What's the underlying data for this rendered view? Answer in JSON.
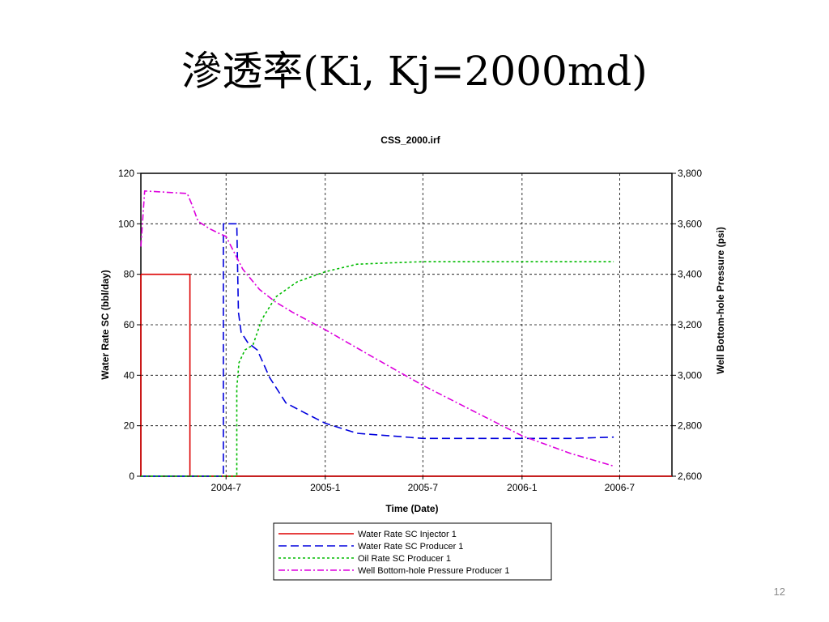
{
  "slide": {
    "title": "滲透率(Ki, Kj=2000md)",
    "page_number": "12"
  },
  "chart_data": {
    "type": "line",
    "title": "CSS_2000.irf",
    "xlabel": "Time (Date)",
    "ylabel": "Water Rate SC (bbl/day)",
    "y2label": "Well Bottom-hole Pressure (psi)",
    "xlim": [
      "2004-01-25",
      "2006-10-06"
    ],
    "ylim": [
      0,
      120
    ],
    "y2lim": [
      2600,
      3800
    ],
    "x_ticks": [
      {
        "date": "2004-07-01",
        "label": "2004-7"
      },
      {
        "date": "2005-01-01",
        "label": "2005-1"
      },
      {
        "date": "2005-07-01",
        "label": "2005-7"
      },
      {
        "date": "2006-01-01",
        "label": "2006-1"
      },
      {
        "date": "2006-07-01",
        "label": "2006-7"
      }
    ],
    "y_ticks": [
      0,
      20,
      40,
      60,
      80,
      100,
      120
    ],
    "y2_ticks": [
      {
        "value": 2600,
        "label": "2,600"
      },
      {
        "value": 2800,
        "label": "2,800"
      },
      {
        "value": 3000,
        "label": "3,000"
      },
      {
        "value": 3200,
        "label": "3,200"
      },
      {
        "value": 3400,
        "label": "3,400"
      },
      {
        "value": 3600,
        "label": "3,600"
      },
      {
        "value": 3800,
        "label": "3,800"
      }
    ],
    "grid": true,
    "legend_position": "bottom",
    "series": [
      {
        "name": "Water Rate SC Injector 1",
        "axis": "left",
        "color": "#dd0000",
        "dash": "solid",
        "x": [
          "2004-01-25",
          "2004-01-25",
          "2004-04-25",
          "2004-04-25",
          "2006-10-06"
        ],
        "y": [
          0,
          80,
          80,
          0,
          0
        ]
      },
      {
        "name": "Water Rate SC Producer 1",
        "axis": "left",
        "color": "#0000dd",
        "dash": "dash",
        "x": [
          "2004-01-25",
          "2004-06-26",
          "2004-06-26",
          "2004-07-21",
          "2004-07-24",
          "2004-07-29",
          "2004-08-10",
          "2004-08-28",
          "2004-09-20",
          "2004-10-20",
          "2004-11-25",
          "2005-01-01",
          "2005-03-01",
          "2005-05-01",
          "2005-07-01",
          "2005-10-01",
          "2006-01-01",
          "2006-04-01",
          "2006-06-20"
        ],
        "y": [
          0,
          0,
          100,
          100,
          65,
          57,
          53,
          50,
          39,
          29,
          25,
          21,
          17,
          16,
          15,
          15,
          15,
          15,
          15.5
        ]
      },
      {
        "name": "Oil Rate SC Producer 1",
        "axis": "left",
        "color": "#00bb00",
        "dash": "dot",
        "x": [
          "2004-01-25",
          "2004-07-21",
          "2004-07-21",
          "2004-07-25",
          "2004-08-05",
          "2004-08-20",
          "2004-09-05",
          "2004-10-01",
          "2004-11-10",
          "2005-01-01",
          "2005-03-01",
          "2005-05-01",
          "2005-07-01",
          "2005-10-01",
          "2006-01-01",
          "2006-04-01",
          "2006-06-20"
        ],
        "y": [
          0,
          0,
          35,
          45,
          50,
          52,
          62,
          71,
          77,
          81,
          84,
          84.5,
          85,
          85,
          85,
          85,
          85
        ]
      },
      {
        "name": "Well Bottom-hole Pressure Producer 1",
        "axis": "right",
        "color": "#dd00dd",
        "dash": "dashdot",
        "x": [
          "2004-01-25",
          "2004-02-01",
          "2004-04-20",
          "2004-04-28",
          "2004-05-10",
          "2004-06-01",
          "2004-06-20",
          "2004-07-01",
          "2004-08-01",
          "2004-09-01",
          "2004-10-01",
          "2004-11-01",
          "2005-01-01",
          "2005-04-01",
          "2005-07-01",
          "2005-10-01",
          "2006-01-01",
          "2006-04-01",
          "2006-06-20"
        ],
        "y": [
          3510,
          3730,
          3720,
          3680,
          3610,
          3580,
          3560,
          3550,
          3420,
          3340,
          3290,
          3250,
          3180,
          3070,
          2960,
          2860,
          2760,
          2690,
          2640
        ]
      }
    ]
  }
}
